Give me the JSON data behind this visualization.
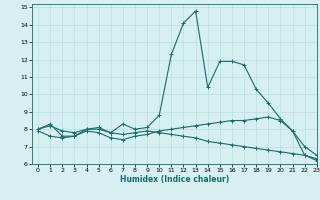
{
  "title": "",
  "xlabel": "Humidex (Indice chaleur)",
  "ylabel": "",
  "background_color": "#d6eff0",
  "grid_color": "#b8dede",
  "line_color": "#1a6b6b",
  "xlim": [
    -0.5,
    23
  ],
  "ylim": [
    6,
    15.2
  ],
  "xticks": [
    0,
    1,
    2,
    3,
    4,
    5,
    6,
    7,
    8,
    9,
    10,
    11,
    12,
    13,
    14,
    15,
    16,
    17,
    18,
    19,
    20,
    21,
    22,
    23
  ],
  "yticks": [
    6,
    7,
    8,
    9,
    10,
    11,
    12,
    13,
    14,
    15
  ],
  "series": [
    [
      8.0,
      8.3,
      7.6,
      7.6,
      8.0,
      8.1,
      7.8,
      8.3,
      8.0,
      8.1,
      8.8,
      12.3,
      14.1,
      14.8,
      10.4,
      11.9,
      11.9,
      11.7,
      10.3,
      9.5,
      8.6,
      7.9,
      6.5,
      6.2
    ],
    [
      7.9,
      7.6,
      7.5,
      7.6,
      7.9,
      7.8,
      7.5,
      7.4,
      7.6,
      7.7,
      7.9,
      8.0,
      8.1,
      8.2,
      8.3,
      8.4,
      8.5,
      8.5,
      8.6,
      8.7,
      8.5,
      7.9,
      7.0,
      6.5
    ],
    [
      8.0,
      8.2,
      7.9,
      7.8,
      8.0,
      8.0,
      7.8,
      7.7,
      7.8,
      7.9,
      7.8,
      7.7,
      7.6,
      7.5,
      7.3,
      7.2,
      7.1,
      7.0,
      6.9,
      6.8,
      6.7,
      6.6,
      6.5,
      6.3
    ]
  ]
}
